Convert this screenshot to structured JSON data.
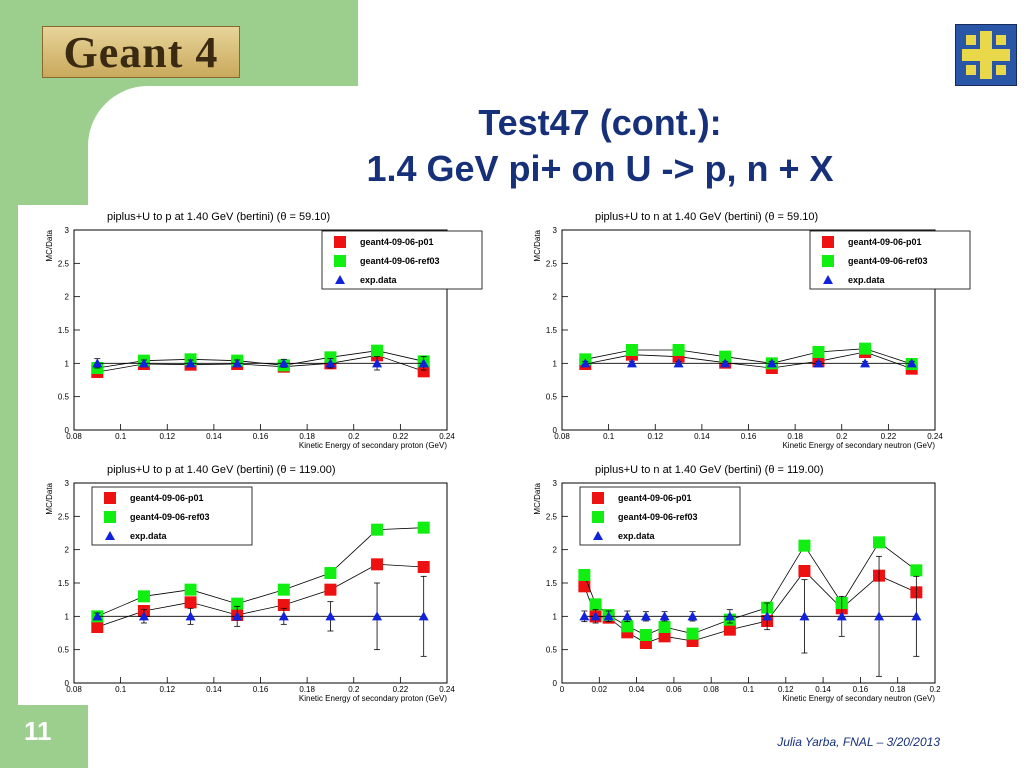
{
  "slide": {
    "logo_text": "Geant 4",
    "title_line1": "Test47 (cont.):",
    "title_line2": "1.4 GeV pi+ on U -> p, n + X",
    "page_number": "11",
    "footer": "Julia Yarba, FNAL – 3/20/2013"
  },
  "colors": {
    "p01": "#ee1111",
    "ref03": "#11ee11",
    "exp": "#1122dd",
    "title": "#16307a",
    "green": "#9ccf8e"
  },
  "chart_data": [
    {
      "type": "scatter",
      "title": "piplus+U to p at 1.40 GeV (bertini) (θ =    59.10)",
      "xlabel": "Kinetic Energy of secondary proton (GeV)",
      "ylabel": "MC/Data",
      "xlim": [
        0.08,
        0.24
      ],
      "ylim": [
        0,
        3
      ],
      "xticks": [
        "0.08",
        "0.1",
        "0.12",
        "0.14",
        "0.16",
        "0.18",
        "0.2",
        "0.22",
        "0.24"
      ],
      "yticks": [
        "0",
        "0.5",
        "1",
        "1.5",
        "2",
        "2.5",
        "3"
      ],
      "legend_position": "top-right",
      "series": [
        {
          "name": "geant4-09-06-p01",
          "key": "p01",
          "marker": "square",
          "x": [
            0.09,
            0.11,
            0.13,
            0.15,
            0.17,
            0.19,
            0.21,
            0.23
          ],
          "y": [
            0.87,
            0.99,
            0.98,
            0.99,
            0.95,
            1.0,
            1.12,
            0.88
          ]
        },
        {
          "name": "geant4-09-06-ref03",
          "key": "ref03",
          "marker": "square",
          "x": [
            0.09,
            0.11,
            0.13,
            0.15,
            0.17,
            0.19,
            0.21,
            0.23
          ],
          "y": [
            0.93,
            1.04,
            1.06,
            1.04,
            0.97,
            1.09,
            1.19,
            1.03
          ]
        },
        {
          "name": "exp.data",
          "key": "exp",
          "marker": "triangle",
          "x": [
            0.09,
            0.11,
            0.13,
            0.15,
            0.17,
            0.19,
            0.21,
            0.23
          ],
          "y": [
            1,
            1,
            1,
            1,
            1,
            1,
            1,
            1
          ],
          "err": [
            0.07,
            0.05,
            0.05,
            0.05,
            0.06,
            0.07,
            0.1,
            0.1
          ]
        }
      ]
    },
    {
      "type": "scatter",
      "title": "piplus+U to n at 1.40 GeV (bertini) (θ =    59.10)",
      "xlabel": "Kinetic Energy of secondary neutron (GeV)",
      "ylabel": "MC/Data",
      "xlim": [
        0.08,
        0.24
      ],
      "ylim": [
        0,
        3
      ],
      "xticks": [
        "0.08",
        "0.1",
        "0.12",
        "0.14",
        "0.16",
        "0.18",
        "0.2",
        "0.22",
        "0.24"
      ],
      "yticks": [
        "0",
        "0.5",
        "1",
        "1.5",
        "2",
        "2.5",
        "3"
      ],
      "legend_position": "top-right",
      "series": [
        {
          "name": "geant4-09-06-p01",
          "key": "p01",
          "marker": "square",
          "x": [
            0.09,
            0.11,
            0.13,
            0.15,
            0.17,
            0.19,
            0.21,
            0.23
          ],
          "y": [
            0.99,
            1.13,
            1.1,
            1.01,
            0.93,
            1.03,
            1.17,
            0.92
          ]
        },
        {
          "name": "geant4-09-06-ref03",
          "key": "ref03",
          "marker": "square",
          "x": [
            0.09,
            0.11,
            0.13,
            0.15,
            0.17,
            0.19,
            0.21,
            0.23
          ],
          "y": [
            1.06,
            1.2,
            1.2,
            1.1,
            1.0,
            1.17,
            1.22,
            0.99
          ]
        },
        {
          "name": "exp.data",
          "key": "exp",
          "marker": "triangle",
          "x": [
            0.09,
            0.11,
            0.13,
            0.15,
            0.17,
            0.19,
            0.21,
            0.23
          ],
          "y": [
            1,
            1,
            1,
            1,
            1,
            1,
            1,
            1
          ],
          "err": [
            0.03,
            0.03,
            0.03,
            0.03,
            0.03,
            0.03,
            0.03,
            0.03
          ]
        }
      ]
    },
    {
      "type": "scatter",
      "title": "piplus+U to p at 1.40 GeV (bertini) (θ =   119.00)",
      "xlabel": "Kinetic Energy of secondary proton (GeV)",
      "ylabel": "MC/Data",
      "xlim": [
        0.08,
        0.24
      ],
      "ylim": [
        0,
        3
      ],
      "xticks": [
        "0.08",
        "0.1",
        "0.12",
        "0.14",
        "0.16",
        "0.18",
        "0.2",
        "0.22",
        "0.24"
      ],
      "yticks": [
        "0",
        "0.5",
        "1",
        "1.5",
        "2",
        "2.5",
        "3"
      ],
      "legend_position": "top-left",
      "series": [
        {
          "name": "geant4-09-06-p01",
          "key": "p01",
          "marker": "square",
          "x": [
            0.09,
            0.11,
            0.13,
            0.15,
            0.17,
            0.19,
            0.21,
            0.23
          ],
          "y": [
            0.84,
            1.08,
            1.21,
            1.02,
            1.17,
            1.4,
            1.78,
            1.74
          ]
        },
        {
          "name": "geant4-09-06-ref03",
          "key": "ref03",
          "marker": "square",
          "x": [
            0.09,
            0.11,
            0.13,
            0.15,
            0.17,
            0.19,
            0.21,
            0.23
          ],
          "y": [
            1.0,
            1.3,
            1.4,
            1.19,
            1.4,
            1.65,
            2.3,
            2.33
          ]
        },
        {
          "name": "exp.data",
          "key": "exp",
          "marker": "triangle",
          "x": [
            0.09,
            0.11,
            0.13,
            0.15,
            0.17,
            0.19,
            0.21,
            0.23
          ],
          "y": [
            1,
            1,
            1,
            1,
            1,
            1,
            1,
            1
          ],
          "err": [
            0.05,
            0.1,
            0.12,
            0.15,
            0.12,
            0.22,
            0.5,
            0.6
          ]
        }
      ]
    },
    {
      "type": "scatter",
      "title": "piplus+U to n at 1.40 GeV (bertini) (θ =   119.00)",
      "xlabel": "Kinetic Energy of secondary neutron (GeV)",
      "ylabel": "MC/Data",
      "xlim": [
        0,
        0.2
      ],
      "ylim": [
        0,
        3
      ],
      "xticks": [
        "0",
        "0.02",
        "0.04",
        "0.06",
        "0.08",
        "0.1",
        "0.12",
        "0.14",
        "0.16",
        "0.18",
        "0.2"
      ],
      "yticks": [
        "0",
        "0.5",
        "1",
        "1.5",
        "2",
        "2.5",
        "3"
      ],
      "legend_position": "top-left",
      "series": [
        {
          "name": "geant4-09-06-p01",
          "key": "p01",
          "marker": "square",
          "x": [
            0.012,
            0.018,
            0.025,
            0.035,
            0.045,
            0.055,
            0.07,
            0.09,
            0.11,
            0.13,
            0.15,
            0.17,
            0.19
          ],
          "y": [
            1.45,
            1.0,
            0.98,
            0.76,
            0.6,
            0.7,
            0.63,
            0.8,
            0.93,
            1.68,
            1.12,
            1.61,
            1.36
          ]
        },
        {
          "name": "geant4-09-06-ref03",
          "key": "ref03",
          "marker": "square",
          "x": [
            0.012,
            0.018,
            0.025,
            0.035,
            0.045,
            0.055,
            0.07,
            0.09,
            0.11,
            0.13,
            0.15,
            0.17,
            0.19
          ],
          "y": [
            1.62,
            1.18,
            1.02,
            0.85,
            0.72,
            0.84,
            0.74,
            0.95,
            1.13,
            2.06,
            1.2,
            2.11,
            1.69
          ]
        },
        {
          "name": "exp.data",
          "key": "exp",
          "marker": "triangle",
          "x": [
            0.012,
            0.018,
            0.025,
            0.035,
            0.045,
            0.055,
            0.07,
            0.09,
            0.11,
            0.13,
            0.15,
            0.17,
            0.19
          ],
          "y": [
            1,
            1,
            1,
            1,
            1,
            1,
            1,
            1,
            1,
            1,
            1,
            1,
            1
          ],
          "err": [
            0.08,
            0.1,
            0.08,
            0.08,
            0.07,
            0.07,
            0.07,
            0.1,
            0.2,
            0.55,
            0.3,
            0.9,
            0.6
          ]
        }
      ]
    }
  ]
}
